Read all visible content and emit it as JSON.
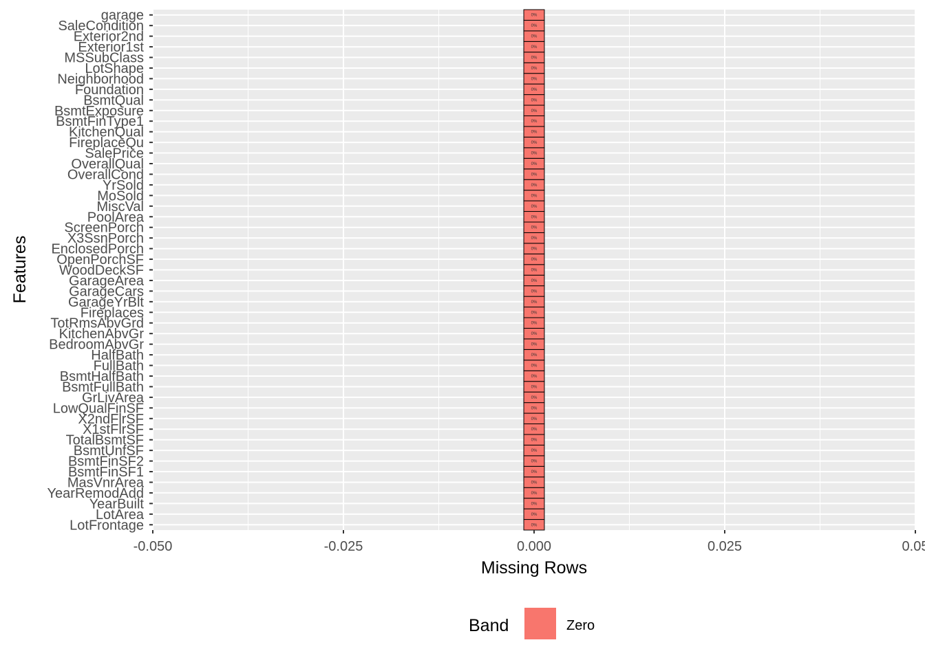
{
  "chart_data": {
    "type": "bar",
    "orientation": "horizontal",
    "xlabel": "Missing Rows",
    "ylabel": "Features",
    "xlim": [
      -0.05,
      0.05
    ],
    "x_ticks": [
      -0.05,
      -0.025,
      0.0,
      0.025,
      0.05
    ],
    "x_tick_labels": [
      "-0.050",
      "-0.025",
      "0.000",
      "0.025",
      "0.05"
    ],
    "grid": true,
    "bar_width_data": 0.0027,
    "categories": [
      "LotFrontage",
      "LotArea",
      "YearBuilt",
      "YearRemodAdd",
      "MasVnrArea",
      "BsmtFinSF1",
      "BsmtFinSF2",
      "BsmtUnfSF",
      "TotalBsmtSF",
      "X1stFlrSF",
      "X2ndFlrSF",
      "LowQualFinSF",
      "GrLivArea",
      "BsmtFullBath",
      "BsmtHalfBath",
      "FullBath",
      "HalfBath",
      "BedroomAbvGr",
      "KitchenAbvGr",
      "TotRmsAbvGrd",
      "Fireplaces",
      "GarageYrBlt",
      "GarageCars",
      "GarageArea",
      "WoodDeckSF",
      "OpenPorchSF",
      "EnclosedPorch",
      "X3SsnPorch",
      "ScreenPorch",
      "PoolArea",
      "MiscVal",
      "MoSold",
      "YrSold",
      "OverallCond",
      "OverallQual",
      "SalePrice",
      "FireplaceQu",
      "KitchenQual",
      "BsmtFinType1",
      "BsmtExposure",
      "BsmtQual",
      "Foundation",
      "Neighborhood",
      "LotShape",
      "MSSubClass",
      "Exterior1st",
      "Exterior2nd",
      "SaleCondition",
      "garage"
    ],
    "values": [
      0,
      0,
      0,
      0,
      0,
      0,
      0,
      0,
      0,
      0,
      0,
      0,
      0,
      0,
      0,
      0,
      0,
      0,
      0,
      0,
      0,
      0,
      0,
      0,
      0,
      0,
      0,
      0,
      0,
      0,
      0,
      0,
      0,
      0,
      0,
      0,
      0,
      0,
      0,
      0,
      0,
      0,
      0,
      0,
      0,
      0,
      0,
      0,
      0
    ],
    "bar_labels": "0%",
    "bar_color": "#F8766D",
    "bar_outline": "#000000",
    "panel_background": "#EBEBEB",
    "legend": {
      "title": "Band",
      "position": "bottom",
      "items": [
        {
          "label": "Zero",
          "color": "#F8766D"
        }
      ]
    }
  }
}
